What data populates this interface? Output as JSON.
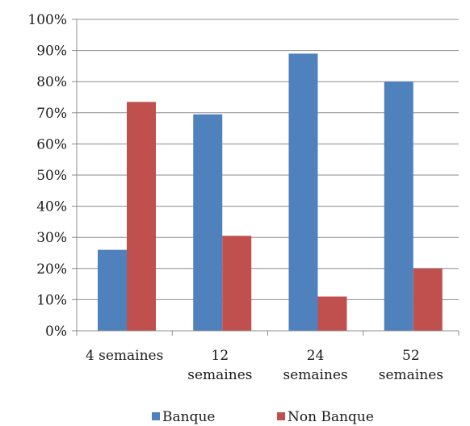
{
  "chart_data": {
    "type": "bar",
    "title": "",
    "xlabel": "",
    "ylabel": "",
    "ylim": [
      0,
      100
    ],
    "y_tick_step": 10,
    "y_tick_suffix": "%",
    "grid": true,
    "legend_position": "bottom",
    "categories": [
      [
        "4 semaines"
      ],
      [
        "12",
        "semaines"
      ],
      [
        "24",
        "semaines"
      ],
      [
        "52",
        "semaines"
      ]
    ],
    "series": [
      {
        "name": "Banque",
        "color": "#4f81bd",
        "values": [
          26,
          69.5,
          89,
          80
        ]
      },
      {
        "name": "Non Banque",
        "color": "#c0504d",
        "values": [
          73.5,
          30.5,
          11,
          20
        ]
      }
    ]
  }
}
